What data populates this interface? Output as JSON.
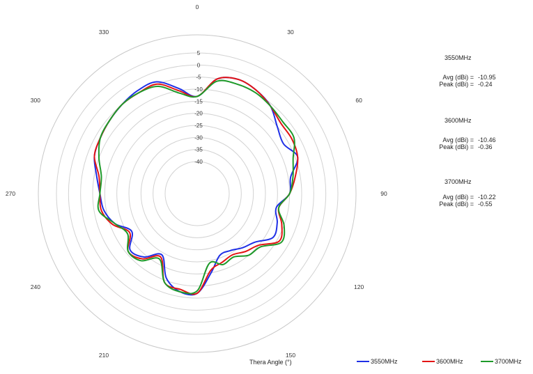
{
  "chart_data": {
    "type": "line",
    "subtype": "polar",
    "xlabel": "Thera  Angle (°)",
    "angle_labels": [
      "0",
      "30",
      "60",
      "90",
      "120",
      "150",
      "180",
      "210",
      "240",
      "270",
      "300",
      "330"
    ],
    "radial_ticks": [
      5,
      0,
      -5,
      -10,
      -15,
      -20,
      -25,
      -30,
      -35,
      -40
    ],
    "r_range": [
      -40,
      5
    ],
    "grid": true,
    "legend_position": "bottom-right",
    "series": [
      {
        "name": "3550MHz",
        "color": "#1f2fe6",
        "theta": [
          0,
          10,
          20,
          30,
          40,
          50,
          60,
          70,
          80,
          90,
          100,
          110,
          120,
          130,
          140,
          150,
          160,
          170,
          180,
          190,
          200,
          210,
          220,
          230,
          240,
          250,
          260,
          270,
          280,
          290,
          300,
          310,
          320,
          330,
          340,
          350
        ],
        "values": [
          -13,
          -5,
          -3,
          -4,
          -6,
          -10,
          -12,
          -9,
          -14,
          -15,
          -20,
          -18,
          -17,
          -22,
          -24,
          -26,
          -26,
          -20,
          -12,
          -12,
          -16,
          -24,
          -19,
          -17,
          -22,
          -17,
          -14,
          -13,
          -11,
          -8,
          -7,
          -6,
          -5,
          -4,
          -4,
          -9
        ]
      },
      {
        "name": "3600MHz",
        "color": "#e31414",
        "theta": [
          0,
          10,
          20,
          30,
          40,
          50,
          60,
          70,
          80,
          90,
          100,
          110,
          120,
          130,
          140,
          150,
          160,
          170,
          180,
          190,
          200,
          210,
          220,
          230,
          240,
          250,
          260,
          270,
          280,
          290,
          300,
          310,
          320,
          330,
          340,
          350
        ],
        "values": [
          -13,
          -5,
          -3,
          -4,
          -6,
          -8,
          -8,
          -9,
          -12,
          -15,
          -19,
          -16,
          -14,
          -20,
          -22,
          -24,
          -23,
          -21,
          -12,
          -13,
          -14,
          -23,
          -18,
          -16,
          -21,
          -16,
          -13,
          -13,
          -12,
          -8,
          -7,
          -6,
          -5,
          -5,
          -5,
          -10
        ]
      },
      {
        "name": "3700MHz",
        "color": "#1e9a2a",
        "theta": [
          0,
          10,
          20,
          30,
          40,
          50,
          60,
          70,
          80,
          90,
          100,
          110,
          120,
          130,
          140,
          150,
          160,
          170,
          180,
          190,
          200,
          210,
          220,
          230,
          240,
          250,
          260,
          270,
          280,
          290,
          300,
          310,
          320,
          330,
          340,
          350
        ],
        "values": [
          -13,
          -6,
          -5,
          -5,
          -6,
          -7,
          -7,
          -11,
          -13,
          -15,
          -19,
          -15,
          -13,
          -19,
          -20,
          -23,
          -22,
          -24,
          -13,
          -12,
          -14,
          -22,
          -17,
          -16,
          -20,
          -17,
          -12,
          -13,
          -13,
          -10,
          -7,
          -6,
          -5,
          -5,
          -6,
          -11
        ]
      }
    ]
  },
  "stats": [
    {
      "title": "3550MHz",
      "avg_label": "Avg (dBi) =",
      "avg": "-10.95",
      "peak_label": "Peak (dBi) =",
      "peak": "-0.24"
    },
    {
      "title": "3600MHz",
      "avg_label": "Avg (dBi) =",
      "avg": "-10.46",
      "peak_label": "Peak (dBi) =",
      "peak": "-0.36"
    },
    {
      "title": "3700MHz",
      "avg_label": "Avg (dBi) =",
      "avg": "-10.22",
      "peak_label": "Peak (dBi) =",
      "peak": "-0.55"
    }
  ]
}
